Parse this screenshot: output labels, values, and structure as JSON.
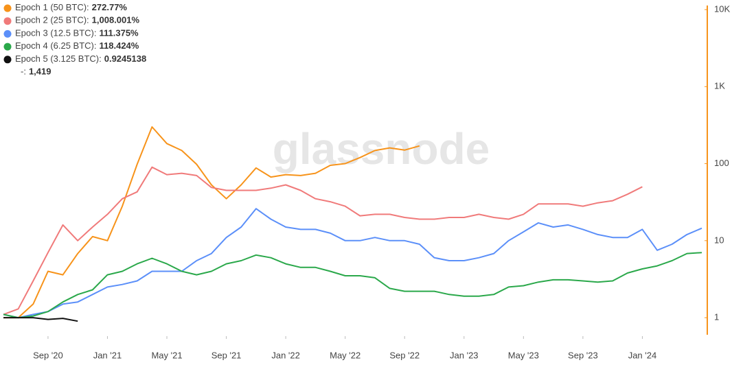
{
  "chart_data": {
    "type": "line",
    "watermark": "glassnode",
    "x": [
      "2020-06",
      "2020-07",
      "2020-08",
      "2020-09",
      "2020-10",
      "2020-11",
      "2020-12",
      "2021-01",
      "2021-02",
      "2021-03",
      "2021-04",
      "2021-05",
      "2021-06",
      "2021-07",
      "2021-08",
      "2021-09",
      "2021-10",
      "2021-11",
      "2021-12",
      "2022-01",
      "2022-02",
      "2022-03",
      "2022-04",
      "2022-05",
      "2022-06",
      "2022-07",
      "2022-08",
      "2022-09",
      "2022-10",
      "2022-11",
      "2022-12",
      "2023-01",
      "2023-02",
      "2023-03",
      "2023-04",
      "2023-05",
      "2023-06",
      "2023-07",
      "2023-08",
      "2023-09",
      "2023-10",
      "2023-11",
      "2023-12",
      "2024-01",
      "2024-02",
      "2024-03",
      "2024-04",
      "2024-05"
    ],
    "xlim": [
      "2020-06",
      "2024-05"
    ],
    "xticks": [
      {
        "value": "2020-09",
        "label": "Sep '20"
      },
      {
        "value": "2021-01",
        "label": "Jan '21"
      },
      {
        "value": "2021-05",
        "label": "May '21"
      },
      {
        "value": "2021-09",
        "label": "Sep '21"
      },
      {
        "value": "2022-01",
        "label": "Jan '22"
      },
      {
        "value": "2022-05",
        "label": "May '22"
      },
      {
        "value": "2022-09",
        "label": "Sep '22"
      },
      {
        "value": "2023-01",
        "label": "Jan '23"
      },
      {
        "value": "2023-05",
        "label": "May '23"
      },
      {
        "value": "2023-09",
        "label": "Sep '23"
      },
      {
        "value": "2024-01",
        "label": "Jan '24"
      }
    ],
    "log_y": true,
    "ylim": [
      0.6,
      10000
    ],
    "yticks": [
      1,
      10,
      100,
      {
        "value": 1000,
        "label": "1K"
      },
      {
        "value": 10000,
        "label": "10K"
      }
    ],
    "y_axis_color": "#f7931a",
    "series": [
      {
        "name": "Epoch 1 (50 BTC):",
        "hover_value": "272.77%",
        "color": "#f7931a",
        "values": [
          1,
          1,
          1.5,
          4,
          3.6,
          6.8,
          11.3,
          10,
          28,
          98,
          300,
          182,
          148,
          98,
          53,
          35,
          53,
          88,
          67,
          72,
          70,
          75,
          95,
          100,
          120,
          148,
          160,
          150,
          170,
          null,
          null,
          null,
          null,
          null,
          null,
          null,
          null,
          null,
          null,
          null,
          null,
          null,
          null,
          null,
          null,
          null,
          null,
          null
        ]
      },
      {
        "name": "Epoch 2 (25 BTC):",
        "hover_value": "1,008.001%",
        "color": "#f07a7a",
        "values": [
          1.1,
          1.3,
          3,
          7,
          16,
          10,
          15,
          22,
          35,
          43,
          90,
          72,
          75,
          70,
          49,
          45,
          45,
          45,
          48,
          53,
          45,
          35,
          32,
          28,
          21,
          22,
          22,
          20,
          19,
          19,
          20,
          20,
          22,
          20,
          19,
          22,
          30,
          30,
          30,
          28,
          31,
          33,
          40,
          50,
          null,
          null,
          null,
          null
        ]
      },
      {
        "name": "Epoch 3 (12.5 BTC):",
        "hover_value": "111.375%",
        "color": "#5b8ff9",
        "values": [
          1.1,
          1,
          1.1,
          1.2,
          1.5,
          1.6,
          2,
          2.5,
          2.7,
          3,
          4,
          4,
          4,
          5.5,
          6.8,
          11,
          15,
          26,
          19,
          15,
          14,
          14,
          12.5,
          10,
          10,
          11,
          10,
          10,
          9,
          6,
          5.5,
          5.5,
          6,
          6.8,
          10,
          13,
          17,
          15,
          16,
          14,
          12,
          11,
          11,
          14,
          7.5,
          9,
          12,
          14.5
        ]
      },
      {
        "name": "Epoch 4 (6.25 BTC):",
        "hover_value": "118.424%",
        "color": "#2aa84a",
        "values": [
          1.1,
          1,
          1.05,
          1.2,
          1.6,
          2,
          2.3,
          3.6,
          4,
          5,
          5.9,
          5,
          4,
          3.6,
          4,
          5,
          5.5,
          6.5,
          6,
          5,
          4.5,
          4.5,
          4,
          3.5,
          3.5,
          3.3,
          2.4,
          2.2,
          2.2,
          2.2,
          2,
          1.9,
          1.9,
          2,
          2.5,
          2.6,
          2.9,
          3.1,
          3.1,
          3,
          2.9,
          3,
          3.8,
          4.3,
          4.7,
          5.5,
          6.8,
          7
        ]
      },
      {
        "name": "Epoch 5 (3.125 BTC):",
        "hover_value": "0.9245138",
        "color": "#111111",
        "values": [
          1,
          1,
          1,
          0.95,
          0.98,
          0.9,
          null,
          null,
          null,
          null,
          null,
          null,
          null,
          null,
          null,
          null,
          null,
          null,
          null,
          null,
          null,
          null,
          null,
          null,
          null,
          null,
          null,
          null,
          null,
          null,
          null,
          null,
          null,
          null,
          null,
          null,
          null,
          null,
          null,
          null,
          null,
          null,
          null,
          null,
          null,
          null,
          null,
          null
        ]
      }
    ],
    "extra_label": "-:",
    "extra_value": "1,419"
  }
}
